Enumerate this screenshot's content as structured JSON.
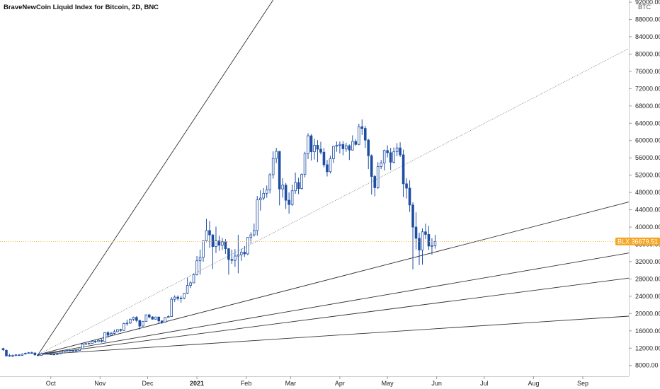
{
  "chart_data": {
    "type": "candlestick",
    "title": "BraveNewCoin Liquid Index for Bitcoin, 2D, BNC",
    "currency_unit": "BTC",
    "x_tick_labels": [
      "Oct",
      "Nov",
      "Dec",
      "2021",
      "Feb",
      "Mar",
      "Apr",
      "May",
      "Jun",
      "Jul",
      "Aug",
      "Sep"
    ],
    "y_tick_labels": [
      "8000.00",
      "12000.00",
      "16000.00",
      "20000.00",
      "24000.00",
      "28000.00",
      "32000.00",
      "36000.00",
      "40000.00",
      "44000.00",
      "48000.00",
      "52000.00",
      "56000.00",
      "60000.00",
      "64000.00",
      "68000.00",
      "72000.00",
      "76000.00",
      "80000.00",
      "84000.00",
      "88000.00",
      "92000.00"
    ],
    "y_ticks": [
      8000,
      12000,
      16000,
      20000,
      24000,
      28000,
      32000,
      36000,
      40000,
      44000,
      48000,
      52000,
      56000,
      60000,
      64000,
      68000,
      72000,
      76000,
      80000,
      84000,
      88000,
      92000
    ],
    "ylim": [
      5500,
      92500
    ],
    "x_range": [
      "2020-08-30",
      "2021-09-30"
    ],
    "x_ticks": [
      "2020-10-01",
      "2020-11-01",
      "2020-12-01",
      "2021-01-01",
      "2021-02-01",
      "2021-03-01",
      "2021-04-01",
      "2021-05-01",
      "2021-06-01",
      "2021-07-01",
      "2021-08-01",
      "2021-09-01"
    ],
    "last_price": {
      "symbol": "BLX",
      "value": 36679.51,
      "label": "36679.51"
    },
    "colors": {
      "up": "#ffffff",
      "down": "#1f4ea3",
      "wick": "#1f4ea3",
      "fan_solid": "#333333",
      "fan_dotted": "#777777",
      "price_line": "#f5a623",
      "price_tag": "#f5a623"
    },
    "fan_origin": {
      "date": "2020-09-23",
      "price": 10500
    },
    "fan_lines": [
      {
        "end_date": "2021-02-18",
        "end_price": 92500,
        "style": "solid"
      },
      {
        "end_date": "2021-09-30",
        "end_price": 81300,
        "style": "dotted"
      },
      {
        "end_date": "2021-09-30",
        "end_price": 45800,
        "style": "solid"
      },
      {
        "end_date": "2021-09-30",
        "end_price": 34000,
        "style": "solid"
      },
      {
        "end_date": "2021-09-30",
        "end_price": 28200,
        "style": "solid"
      },
      {
        "end_date": "2021-09-30",
        "end_price": 19400,
        "style": "solid"
      }
    ],
    "candles": [
      {
        "d": "2020-09-01",
        "o": 11900,
        "h": 12100,
        "l": 11400,
        "c": 11600
      },
      {
        "d": "2020-09-03",
        "o": 11500,
        "h": 11700,
        "l": 10100,
        "c": 10200
      },
      {
        "d": "2020-09-05",
        "o": 10300,
        "h": 10700,
        "l": 10000,
        "c": 10250
      },
      {
        "d": "2020-09-07",
        "o": 10250,
        "h": 10500,
        "l": 9900,
        "c": 10350
      },
      {
        "d": "2020-09-09",
        "o": 10350,
        "h": 10600,
        "l": 10100,
        "c": 10450
      },
      {
        "d": "2020-09-11",
        "o": 10450,
        "h": 10600,
        "l": 10200,
        "c": 10350
      },
      {
        "d": "2020-09-13",
        "o": 10350,
        "h": 10800,
        "l": 10200,
        "c": 10650
      },
      {
        "d": "2020-09-15",
        "o": 10650,
        "h": 11000,
        "l": 10500,
        "c": 10800
      },
      {
        "d": "2020-09-17",
        "o": 10800,
        "h": 11100,
        "l": 10700,
        "c": 10950
      },
      {
        "d": "2020-09-19",
        "o": 10950,
        "h": 11200,
        "l": 10800,
        "c": 10900
      },
      {
        "d": "2020-09-21",
        "o": 10900,
        "h": 10950,
        "l": 10300,
        "c": 10450
      },
      {
        "d": "2020-09-23",
        "o": 10450,
        "h": 10700,
        "l": 10150,
        "c": 10300
      },
      {
        "d": "2020-09-25",
        "o": 10300,
        "h": 10800,
        "l": 10250,
        "c": 10700
      },
      {
        "d": "2020-09-27",
        "o": 10700,
        "h": 10900,
        "l": 10600,
        "c": 10750
      },
      {
        "d": "2020-09-29",
        "o": 10750,
        "h": 10850,
        "l": 10550,
        "c": 10650
      },
      {
        "d": "2020-10-01",
        "o": 10650,
        "h": 10900,
        "l": 10450,
        "c": 10600
      },
      {
        "d": "2020-10-03",
        "o": 10600,
        "h": 10700,
        "l": 10400,
        "c": 10550
      },
      {
        "d": "2020-10-05",
        "o": 10550,
        "h": 10800,
        "l": 10500,
        "c": 10700
      },
      {
        "d": "2020-10-07",
        "o": 10700,
        "h": 10950,
        "l": 10600,
        "c": 10900
      },
      {
        "d": "2020-10-09",
        "o": 10900,
        "h": 11400,
        "l": 10850,
        "c": 11350
      },
      {
        "d": "2020-10-11",
        "o": 11350,
        "h": 11600,
        "l": 11250,
        "c": 11500
      },
      {
        "d": "2020-10-13",
        "o": 11500,
        "h": 11650,
        "l": 11300,
        "c": 11450
      },
      {
        "d": "2020-10-15",
        "o": 11450,
        "h": 11600,
        "l": 11200,
        "c": 11400
      },
      {
        "d": "2020-10-17",
        "o": 11400,
        "h": 11500,
        "l": 11300,
        "c": 11450
      },
      {
        "d": "2020-10-19",
        "o": 11450,
        "h": 11900,
        "l": 11400,
        "c": 11850
      },
      {
        "d": "2020-10-21",
        "o": 11850,
        "h": 13100,
        "l": 11800,
        "c": 12950
      },
      {
        "d": "2020-10-23",
        "o": 12950,
        "h": 13200,
        "l": 12800,
        "c": 13050
      },
      {
        "d": "2020-10-25",
        "o": 13050,
        "h": 13300,
        "l": 12900,
        "c": 13100
      },
      {
        "d": "2020-10-27",
        "o": 13100,
        "h": 13700,
        "l": 13000,
        "c": 13600
      },
      {
        "d": "2020-10-29",
        "o": 13600,
        "h": 13800,
        "l": 13200,
        "c": 13500
      },
      {
        "d": "2020-10-31",
        "o": 13500,
        "h": 14000,
        "l": 13400,
        "c": 13800
      },
      {
        "d": "2020-11-02",
        "o": 13800,
        "h": 14100,
        "l": 13300,
        "c": 13550
      },
      {
        "d": "2020-11-04",
        "o": 13550,
        "h": 15700,
        "l": 13500,
        "c": 15600
      },
      {
        "d": "2020-11-06",
        "o": 15600,
        "h": 15900,
        "l": 14400,
        "c": 15000
      },
      {
        "d": "2020-11-08",
        "o": 15000,
        "h": 15800,
        "l": 14800,
        "c": 15400
      },
      {
        "d": "2020-11-10",
        "o": 15400,
        "h": 16300,
        "l": 15200,
        "c": 15800
      },
      {
        "d": "2020-11-12",
        "o": 15800,
        "h": 16400,
        "l": 15700,
        "c": 16300
      },
      {
        "d": "2020-11-14",
        "o": 16300,
        "h": 16500,
        "l": 15800,
        "c": 16100
      },
      {
        "d": "2020-11-16",
        "o": 16100,
        "h": 17900,
        "l": 16000,
        "c": 17700
      },
      {
        "d": "2020-11-18",
        "o": 17700,
        "h": 18600,
        "l": 17200,
        "c": 17800
      },
      {
        "d": "2020-11-20",
        "o": 17800,
        "h": 18800,
        "l": 17600,
        "c": 18700
      },
      {
        "d": "2020-11-22",
        "o": 18700,
        "h": 19300,
        "l": 18300,
        "c": 19100
      },
      {
        "d": "2020-11-24",
        "o": 19100,
        "h": 19400,
        "l": 18000,
        "c": 18400
      },
      {
        "d": "2020-11-26",
        "o": 18400,
        "h": 18600,
        "l": 16300,
        "c": 17100
      },
      {
        "d": "2020-11-28",
        "o": 17100,
        "h": 18300,
        "l": 17000,
        "c": 18200
      },
      {
        "d": "2020-11-30",
        "o": 18200,
        "h": 19800,
        "l": 18100,
        "c": 19700
      },
      {
        "d": "2020-12-02",
        "o": 19700,
        "h": 19900,
        "l": 18900,
        "c": 19200
      },
      {
        "d": "2020-12-04",
        "o": 19200,
        "h": 19400,
        "l": 18600,
        "c": 18700
      },
      {
        "d": "2020-12-06",
        "o": 18700,
        "h": 19300,
        "l": 18600,
        "c": 19200
      },
      {
        "d": "2020-12-08",
        "o": 19200,
        "h": 19300,
        "l": 17700,
        "c": 18300
      },
      {
        "d": "2020-12-10",
        "o": 18300,
        "h": 18400,
        "l": 17600,
        "c": 18000
      },
      {
        "d": "2020-12-12",
        "o": 18000,
        "h": 19200,
        "l": 17900,
        "c": 19100
      },
      {
        "d": "2020-12-14",
        "o": 19100,
        "h": 19600,
        "l": 19000,
        "c": 19300
      },
      {
        "d": "2020-12-16",
        "o": 19300,
        "h": 23800,
        "l": 19200,
        "c": 23300
      },
      {
        "d": "2020-12-18",
        "o": 23300,
        "h": 24200,
        "l": 22700,
        "c": 23800
      },
      {
        "d": "2020-12-20",
        "o": 23800,
        "h": 24200,
        "l": 23000,
        "c": 23500
      },
      {
        "d": "2020-12-22",
        "o": 23500,
        "h": 24100,
        "l": 22500,
        "c": 23600
      },
      {
        "d": "2020-12-24",
        "o": 23600,
        "h": 24800,
        "l": 23300,
        "c": 24700
      },
      {
        "d": "2020-12-26",
        "o": 24700,
        "h": 28300,
        "l": 24500,
        "c": 26500
      },
      {
        "d": "2020-12-28",
        "o": 26500,
        "h": 27500,
        "l": 25900,
        "c": 27100
      },
      {
        "d": "2020-12-30",
        "o": 27100,
        "h": 29300,
        "l": 27000,
        "c": 29000
      },
      {
        "d": "2021-01-01",
        "o": 29000,
        "h": 33300,
        "l": 28800,
        "c": 32200
      },
      {
        "d": "2021-01-03",
        "o": 32200,
        "h": 34800,
        "l": 29000,
        "c": 33000
      },
      {
        "d": "2021-01-05",
        "o": 33000,
        "h": 36900,
        "l": 32000,
        "c": 36800
      },
      {
        "d": "2021-01-07",
        "o": 36800,
        "h": 41900,
        "l": 36500,
        "c": 39200
      },
      {
        "d": "2021-01-09",
        "o": 39200,
        "h": 41400,
        "l": 35200,
        "c": 38200
      },
      {
        "d": "2021-01-11",
        "o": 38200,
        "h": 38300,
        "l": 30300,
        "c": 35500
      },
      {
        "d": "2021-01-13",
        "o": 35500,
        "h": 40100,
        "l": 34000,
        "c": 36800
      },
      {
        "d": "2021-01-15",
        "o": 36800,
        "h": 38000,
        "l": 34500,
        "c": 35800
      },
      {
        "d": "2021-01-17",
        "o": 35800,
        "h": 37500,
        "l": 34700,
        "c": 36600
      },
      {
        "d": "2021-01-19",
        "o": 36600,
        "h": 37200,
        "l": 33800,
        "c": 35000
      },
      {
        "d": "2021-01-21",
        "o": 35000,
        "h": 35100,
        "l": 29000,
        "c": 32500
      },
      {
        "d": "2021-01-23",
        "o": 32500,
        "h": 34800,
        "l": 31500,
        "c": 32300
      },
      {
        "d": "2021-01-25",
        "o": 32300,
        "h": 34900,
        "l": 30800,
        "c": 33300
      },
      {
        "d": "2021-01-27",
        "o": 33300,
        "h": 38200,
        "l": 29300,
        "c": 33600
      },
      {
        "d": "2021-01-29",
        "o": 33600,
        "h": 35000,
        "l": 32200,
        "c": 34200
      },
      {
        "d": "2021-01-31",
        "o": 34200,
        "h": 35600,
        "l": 33100,
        "c": 33800
      },
      {
        "d": "2021-02-02",
        "o": 33800,
        "h": 37700,
        "l": 33500,
        "c": 37600
      },
      {
        "d": "2021-02-04",
        "o": 37600,
        "h": 38800,
        "l": 36200,
        "c": 38200
      },
      {
        "d": "2021-02-06",
        "o": 38200,
        "h": 40800,
        "l": 37800,
        "c": 39200
      },
      {
        "d": "2021-02-08",
        "o": 39200,
        "h": 47200,
        "l": 38000,
        "c": 46300
      },
      {
        "d": "2021-02-10",
        "o": 46300,
        "h": 48500,
        "l": 43800,
        "c": 46700
      },
      {
        "d": "2021-02-12",
        "o": 46700,
        "h": 49000,
        "l": 46200,
        "c": 47800
      },
      {
        "d": "2021-02-14",
        "o": 47800,
        "h": 49600,
        "l": 46800,
        "c": 48600
      },
      {
        "d": "2021-02-16",
        "o": 48600,
        "h": 52500,
        "l": 47800,
        "c": 52100
      },
      {
        "d": "2021-02-18",
        "o": 52100,
        "h": 57500,
        "l": 51200,
        "c": 55900
      },
      {
        "d": "2021-02-20",
        "o": 55900,
        "h": 58300,
        "l": 54800,
        "c": 57500
      },
      {
        "d": "2021-02-22",
        "o": 57500,
        "h": 57600,
        "l": 45000,
        "c": 48800
      },
      {
        "d": "2021-02-24",
        "o": 48800,
        "h": 51300,
        "l": 46800,
        "c": 49700
      },
      {
        "d": "2021-02-26",
        "o": 49700,
        "h": 50200,
        "l": 44200,
        "c": 46200
      },
      {
        "d": "2021-02-28",
        "o": 46200,
        "h": 48000,
        "l": 43100,
        "c": 45200
      },
      {
        "d": "2021-03-02",
        "o": 45200,
        "h": 49800,
        "l": 44900,
        "c": 48400
      },
      {
        "d": "2021-03-04",
        "o": 48400,
        "h": 52600,
        "l": 47700,
        "c": 50300
      },
      {
        "d": "2021-03-06",
        "o": 50300,
        "h": 51400,
        "l": 47600,
        "c": 48900
      },
      {
        "d": "2021-03-08",
        "o": 48900,
        "h": 52400,
        "l": 48700,
        "c": 52200
      },
      {
        "d": "2021-03-10",
        "o": 52200,
        "h": 57400,
        "l": 51500,
        "c": 57000
      },
      {
        "d": "2021-03-12",
        "o": 57000,
        "h": 61700,
        "l": 55700,
        "c": 61100
      },
      {
        "d": "2021-03-14",
        "o": 61100,
        "h": 61500,
        "l": 55400,
        "c": 57400
      },
      {
        "d": "2021-03-16",
        "o": 57400,
        "h": 60400,
        "l": 55600,
        "c": 58900
      },
      {
        "d": "2021-03-18",
        "o": 58900,
        "h": 60100,
        "l": 55000,
        "c": 58000
      },
      {
        "d": "2021-03-20",
        "o": 58000,
        "h": 59700,
        "l": 56800,
        "c": 57300
      },
      {
        "d": "2021-03-22",
        "o": 57300,
        "h": 58300,
        "l": 53800,
        "c": 54400
      },
      {
        "d": "2021-03-24",
        "o": 54400,
        "h": 55500,
        "l": 51700,
        "c": 52800
      },
      {
        "d": "2021-03-26",
        "o": 52800,
        "h": 56500,
        "l": 52400,
        "c": 55800
      },
      {
        "d": "2021-03-28",
        "o": 55800,
        "h": 58800,
        "l": 54800,
        "c": 58700
      },
      {
        "d": "2021-03-30",
        "o": 58700,
        "h": 59800,
        "l": 57400,
        "c": 58900
      },
      {
        "d": "2021-04-01",
        "o": 58900,
        "h": 59800,
        "l": 57000,
        "c": 59100
      },
      {
        "d": "2021-04-03",
        "o": 59100,
        "h": 59900,
        "l": 56600,
        "c": 58100
      },
      {
        "d": "2021-04-05",
        "o": 58100,
        "h": 59500,
        "l": 57400,
        "c": 58800
      },
      {
        "d": "2021-04-07",
        "o": 58800,
        "h": 59100,
        "l": 55500,
        "c": 57800
      },
      {
        "d": "2021-04-09",
        "o": 57800,
        "h": 61200,
        "l": 57700,
        "c": 59800
      },
      {
        "d": "2021-04-11",
        "o": 59800,
        "h": 60300,
        "l": 58800,
        "c": 59100
      },
      {
        "d": "2021-04-13",
        "o": 59100,
        "h": 63900,
        "l": 58900,
        "c": 63200
      },
      {
        "d": "2021-04-15",
        "o": 63200,
        "h": 64900,
        "l": 61300,
        "c": 62800
      },
      {
        "d": "2021-04-17",
        "o": 62800,
        "h": 63400,
        "l": 58300,
        "c": 60100
      },
      {
        "d": "2021-04-19",
        "o": 60100,
        "h": 60400,
        "l": 53400,
        "c": 56500
      },
      {
        "d": "2021-04-21",
        "o": 56500,
        "h": 56800,
        "l": 47500,
        "c": 51700
      },
      {
        "d": "2021-04-23",
        "o": 51700,
        "h": 52100,
        "l": 47100,
        "c": 49100
      },
      {
        "d": "2021-04-25",
        "o": 49100,
        "h": 55000,
        "l": 48800,
        "c": 54000
      },
      {
        "d": "2021-04-27",
        "o": 54000,
        "h": 55500,
        "l": 53400,
        "c": 54800
      },
      {
        "d": "2021-04-29",
        "o": 54800,
        "h": 57900,
        "l": 53100,
        "c": 57700
      },
      {
        "d": "2021-05-01",
        "o": 57700,
        "h": 58900,
        "l": 56100,
        "c": 57200
      },
      {
        "d": "2021-05-03",
        "o": 57200,
        "h": 58300,
        "l": 53200,
        "c": 55000
      },
      {
        "d": "2021-05-05",
        "o": 55000,
        "h": 58400,
        "l": 54700,
        "c": 57400
      },
      {
        "d": "2021-05-07",
        "o": 57400,
        "h": 59400,
        "l": 56400,
        "c": 58300
      },
      {
        "d": "2021-05-09",
        "o": 58300,
        "h": 59600,
        "l": 56200,
        "c": 56700
      },
      {
        "d": "2021-05-11",
        "o": 56700,
        "h": 57900,
        "l": 46900,
        "c": 50000
      },
      {
        "d": "2021-05-13",
        "o": 50000,
        "h": 51300,
        "l": 46600,
        "c": 49000
      },
      {
        "d": "2021-05-15",
        "o": 49000,
        "h": 50800,
        "l": 43500,
        "c": 45100
      },
      {
        "d": "2021-05-17",
        "o": 45100,
        "h": 45700,
        "l": 30200,
        "c": 40000
      },
      {
        "d": "2021-05-19",
        "o": 40000,
        "h": 43400,
        "l": 34800,
        "c": 37400
      },
      {
        "d": "2021-05-21",
        "o": 37400,
        "h": 38700,
        "l": 31200,
        "c": 34700
      },
      {
        "d": "2021-05-23",
        "o": 34700,
        "h": 39700,
        "l": 31300,
        "c": 38900
      },
      {
        "d": "2021-05-25",
        "o": 38900,
        "h": 40800,
        "l": 37200,
        "c": 38300
      },
      {
        "d": "2021-05-27",
        "o": 38300,
        "h": 40300,
        "l": 34700,
        "c": 35600
      },
      {
        "d": "2021-05-29",
        "o": 35600,
        "h": 37400,
        "l": 33600,
        "c": 35700
      },
      {
        "d": "2021-05-31",
        "o": 35700,
        "h": 38200,
        "l": 35000,
        "c": 36680
      }
    ]
  }
}
